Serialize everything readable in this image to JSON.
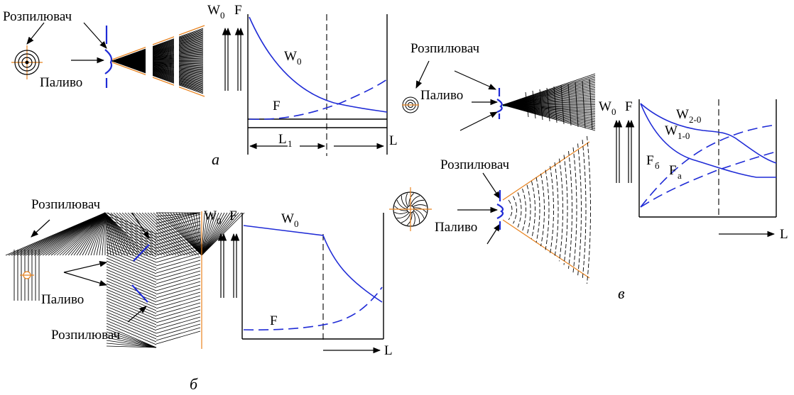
{
  "labels": {
    "atomizer": "Розпилювач",
    "fuel": "Паливо",
    "w0": "W",
    "w0_sub": "0",
    "f": "F",
    "l": "L",
    "l1": "L",
    "l1_sub": "1",
    "w20": "W",
    "w20_sub": "2-0",
    "w10": "W",
    "w10_sub": "1-0",
    "fb": "F",
    "fb_sub": "б",
    "fa": "F",
    "fa_sub": "a"
  },
  "panels": {
    "a": "а",
    "b": "б",
    "v": "в"
  },
  "colors": {
    "curve": "#1f2bd6",
    "spray_edge": "#e8821e",
    "ink": "#000000"
  }
}
